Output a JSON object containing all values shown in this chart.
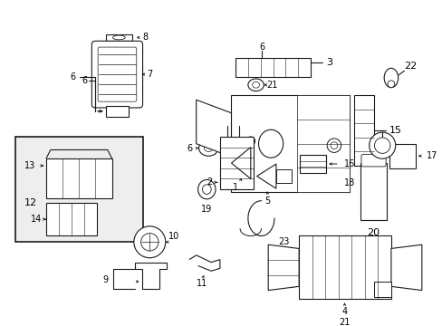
{
  "background_color": "#ffffff",
  "line_color": "#1a1a1a",
  "text_color": "#000000",
  "fig_width": 4.89,
  "fig_height": 3.6,
  "dpi": 100
}
